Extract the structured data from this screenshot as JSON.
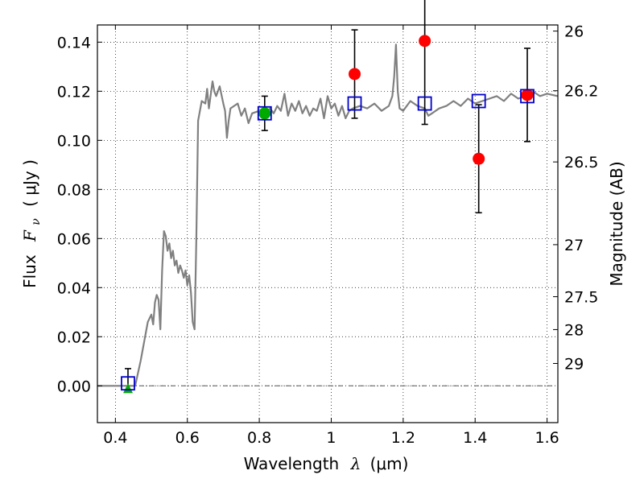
{
  "chart_data": {
    "type": "line",
    "xlabel": {
      "prefix": "Wavelength",
      "symbol": "λ",
      "units": "(μm)"
    },
    "ylabel": {
      "prefix": "Flux",
      "symbol": "F",
      "subscript": "ν",
      "units": "( μJy )"
    },
    "y2label": "Magnitude (AB)",
    "xlim": [
      0.35,
      1.63
    ],
    "ylim": [
      -0.015,
      0.147
    ],
    "x_ticks": [
      0.4,
      0.6,
      0.8,
      1.0,
      1.2,
      1.4,
      1.6
    ],
    "x_tick_labels": [
      "0.4",
      "0.6",
      "0.8",
      "1",
      "1.2",
      "1.4",
      "1.6"
    ],
    "y_ticks": [
      0.0,
      0.02,
      0.04,
      0.06,
      0.08,
      0.1,
      0.12,
      0.14
    ],
    "y_tick_labels": [
      "0.00",
      "0.02",
      "0.04",
      "0.06",
      "0.08",
      "0.10",
      "0.12",
      "0.14"
    ],
    "mag_ticks": [
      {
        "label": "26",
        "flux": 0.1445
      },
      {
        "label": "26.2",
        "flux": 0.1202
      },
      {
        "label": "26.5",
        "flux": 0.0912
      },
      {
        "label": "27",
        "flux": 0.0575
      },
      {
        "label": "27.5",
        "flux": 0.0363
      },
      {
        "label": "28",
        "flux": 0.0229
      },
      {
        "label": "29",
        "flux": 0.0091
      }
    ],
    "grid": true,
    "zero_line": true,
    "series": [
      {
        "kind": "model-spectrum",
        "color": "#808080",
        "x": [
          0.35,
          0.43,
          0.455,
          0.47,
          0.48,
          0.49,
          0.5,
          0.505,
          0.51,
          0.515,
          0.52,
          0.525,
          0.53,
          0.535,
          0.54,
          0.545,
          0.55,
          0.555,
          0.56,
          0.565,
          0.57,
          0.575,
          0.58,
          0.585,
          0.59,
          0.595,
          0.6,
          0.605,
          0.61,
          0.615,
          0.62,
          0.625,
          0.63,
          0.64,
          0.65,
          0.655,
          0.66,
          0.67,
          0.675,
          0.68,
          0.69,
          0.7,
          0.705,
          0.71,
          0.715,
          0.72,
          0.73,
          0.74,
          0.75,
          0.76,
          0.77,
          0.78,
          0.8,
          0.81,
          0.83,
          0.84,
          0.85,
          0.86,
          0.87,
          0.88,
          0.89,
          0.9,
          0.91,
          0.92,
          0.93,
          0.94,
          0.95,
          0.96,
          0.97,
          0.98,
          0.99,
          1.0,
          1.01,
          1.02,
          1.03,
          1.04,
          1.05,
          1.06,
          1.08,
          1.1,
          1.12,
          1.14,
          1.16,
          1.17,
          1.175,
          1.18,
          1.185,
          1.19,
          1.2,
          1.22,
          1.24,
          1.26,
          1.27,
          1.28,
          1.3,
          1.32,
          1.34,
          1.36,
          1.38,
          1.4,
          1.42,
          1.44,
          1.46,
          1.48,
          1.5,
          1.52,
          1.54,
          1.56,
          1.58,
          1.6,
          1.63
        ],
        "y": [
          0.0,
          0.0,
          0.0,
          0.01,
          0.018,
          0.026,
          0.029,
          0.025,
          0.034,
          0.037,
          0.035,
          0.023,
          0.047,
          0.063,
          0.061,
          0.055,
          0.058,
          0.052,
          0.055,
          0.049,
          0.051,
          0.046,
          0.049,
          0.047,
          0.044,
          0.047,
          0.041,
          0.045,
          0.038,
          0.026,
          0.023,
          0.06,
          0.108,
          0.116,
          0.115,
          0.121,
          0.113,
          0.124,
          0.12,
          0.118,
          0.122,
          0.115,
          0.112,
          0.101,
          0.108,
          0.113,
          0.114,
          0.115,
          0.11,
          0.113,
          0.107,
          0.111,
          0.112,
          0.109,
          0.113,
          0.111,
          0.114,
          0.112,
          0.119,
          0.11,
          0.115,
          0.112,
          0.116,
          0.111,
          0.114,
          0.11,
          0.113,
          0.112,
          0.117,
          0.109,
          0.118,
          0.113,
          0.115,
          0.11,
          0.114,
          0.109,
          0.112,
          0.113,
          0.114,
          0.113,
          0.115,
          0.112,
          0.114,
          0.118,
          0.126,
          0.139,
          0.12,
          0.113,
          0.112,
          0.116,
          0.114,
          0.113,
          0.11,
          0.111,
          0.113,
          0.114,
          0.116,
          0.114,
          0.117,
          0.115,
          0.116,
          0.117,
          0.118,
          0.116,
          0.119,
          0.117,
          0.118,
          0.12,
          0.118,
          0.119,
          0.118
        ]
      },
      {
        "kind": "model-photometry",
        "marker": "open-square",
        "color": "#0000cc",
        "x": [
          0.435,
          0.815,
          1.065,
          1.26,
          1.41,
          1.545
        ],
        "y": [
          0.001,
          0.111,
          0.115,
          0.115,
          0.116,
          0.118
        ]
      },
      {
        "kind": "observed",
        "marker": "filled-circle",
        "color": "#ff0000",
        "x": [
          1.065,
          1.26,
          1.41,
          1.545
        ],
        "y": [
          0.127,
          0.1405,
          0.0925,
          0.1185
        ],
        "err": [
          0.018,
          0.034,
          0.022,
          0.019
        ]
      },
      {
        "kind": "observed-green",
        "marker": "filled-circle",
        "color": "#00aa00",
        "x": [
          0.815
        ],
        "y": [
          0.111
        ],
        "err": [
          0.007
        ]
      },
      {
        "kind": "upper-limit",
        "marker": "filled-triangle",
        "color": "#00aa00",
        "x": [
          0.435
        ],
        "y": [
          -0.001
        ],
        "err_top": [
          0.008
        ]
      }
    ]
  }
}
